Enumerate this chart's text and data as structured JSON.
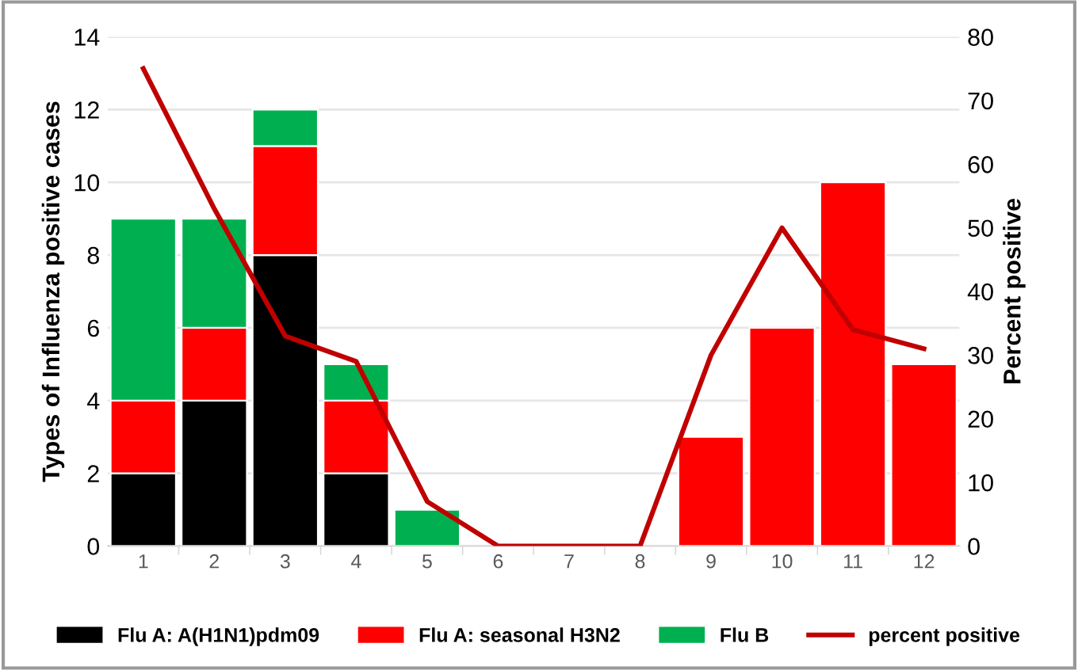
{
  "chart_data": {
    "type": "bar",
    "stacked": true,
    "categories": [
      "1",
      "2",
      "3",
      "4",
      "5",
      "6",
      "7",
      "8",
      "9",
      "10",
      "11",
      "12"
    ],
    "series": [
      {
        "name": "Flu A: A(H1N1)pdm09",
        "color": "#000000",
        "values": [
          2,
          4,
          8,
          2,
          0,
          0,
          0,
          0,
          0,
          0,
          0,
          0
        ]
      },
      {
        "name": "Flu A: seasonal H3N2",
        "color": "#ff0000",
        "values": [
          2,
          2,
          3,
          2,
          0,
          0,
          0,
          0,
          3,
          6,
          10,
          5
        ]
      },
      {
        "name": "Flu B",
        "color": "#00b050",
        "values": [
          5,
          3,
          1,
          1,
          1,
          0,
          0,
          0,
          0,
          0,
          0,
          0
        ]
      },
      {
        "name": "percent positive",
        "type": "line",
        "axis": "y2",
        "color": "#c00000",
        "values": [
          75,
          53,
          33,
          29,
          7,
          0,
          0,
          0,
          30,
          50,
          34,
          31
        ]
      }
    ],
    "ylabel": "Types of Influenza positive cases",
    "y2label": "Percent positive",
    "ylim": [
      0,
      14
    ],
    "yticks": [
      0,
      2,
      4,
      6,
      8,
      10,
      12,
      14
    ],
    "y2lim": [
      0,
      80
    ],
    "y2ticks": [
      0,
      10,
      20,
      30,
      40,
      50,
      60,
      70,
      80
    ],
    "grid": "y",
    "legend": "bottom",
    "marker": "none",
    "line_style": "solid"
  }
}
